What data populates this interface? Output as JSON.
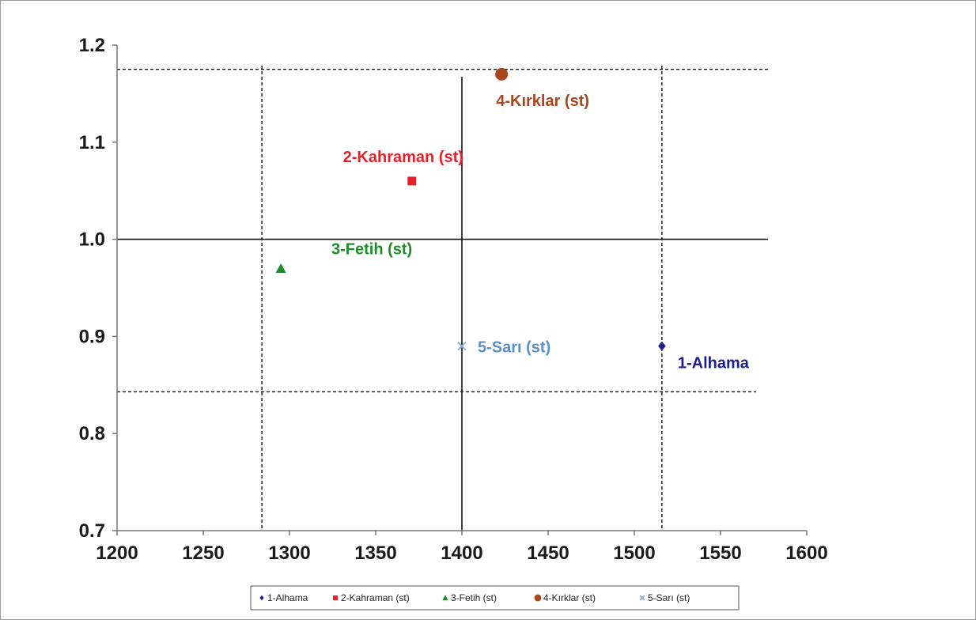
{
  "chart_data": {
    "type": "scatter",
    "title": "",
    "xlabel": "",
    "ylabel": "",
    "xlim": [
      1200,
      1600
    ],
    "ylim": [
      0.7,
      1.2
    ],
    "x_ticks": [
      "1200",
      "1250",
      "1300",
      "1350",
      "1400",
      "1450",
      "1500",
      "1550",
      "1600"
    ],
    "y_ticks": [
      "0.7",
      "0.8",
      "0.9",
      "1.0",
      "1.1",
      "1.2"
    ],
    "grid": false,
    "legend_position": "bottom",
    "series": [
      {
        "name": "1-Alhama",
        "label": "1-Alhama",
        "x": [
          1516
        ],
        "y": [
          0.89
        ],
        "marker": "diamond",
        "color": "#1f1f8c",
        "label_color": "#1f1f8c"
      },
      {
        "name": "2-Kahraman (st)",
        "label": "2-Kahraman (st)",
        "x": [
          1371
        ],
        "y": [
          1.06
        ],
        "marker": "square",
        "color": "#e8202a",
        "label_color": "#e8202a"
      },
      {
        "name": "3-Fetih (st)",
        "label": "3-Fetih (st)",
        "x": [
          1295
        ],
        "y": [
          0.97
        ],
        "marker": "triangle",
        "color": "#1e8c2a",
        "label_color": "#1e8c2a"
      },
      {
        "name": "4-Kırklar (st)",
        "label": "4-Kırklar (st)",
        "x": [
          1423
        ],
        "y": [
          1.17
        ],
        "marker": "circle",
        "color": "#a8461e",
        "label_color": "#a8461e"
      },
      {
        "name": "5-Sarı (st)",
        "label": "5-Sarı (st)",
        "x": [
          1400
        ],
        "y": [
          0.89
        ],
        "marker": "x",
        "color": "#8fb0d8",
        "label_color": "#5b8fc8"
      }
    ],
    "legend_entries": [
      "1-Alhama",
      "2-Kahraman (st)",
      "3-Fetih (st)",
      "4-Kırklar (st)",
      "5-Sarı (st)"
    ],
    "reference_lines": {
      "solid_vertical_x": 1400,
      "solid_horizontal_y": 1.0,
      "dashed_vertical_x": [
        1284,
        1516
      ],
      "dashed_horizontal_y": [
        1.175,
        0.843
      ]
    }
  }
}
